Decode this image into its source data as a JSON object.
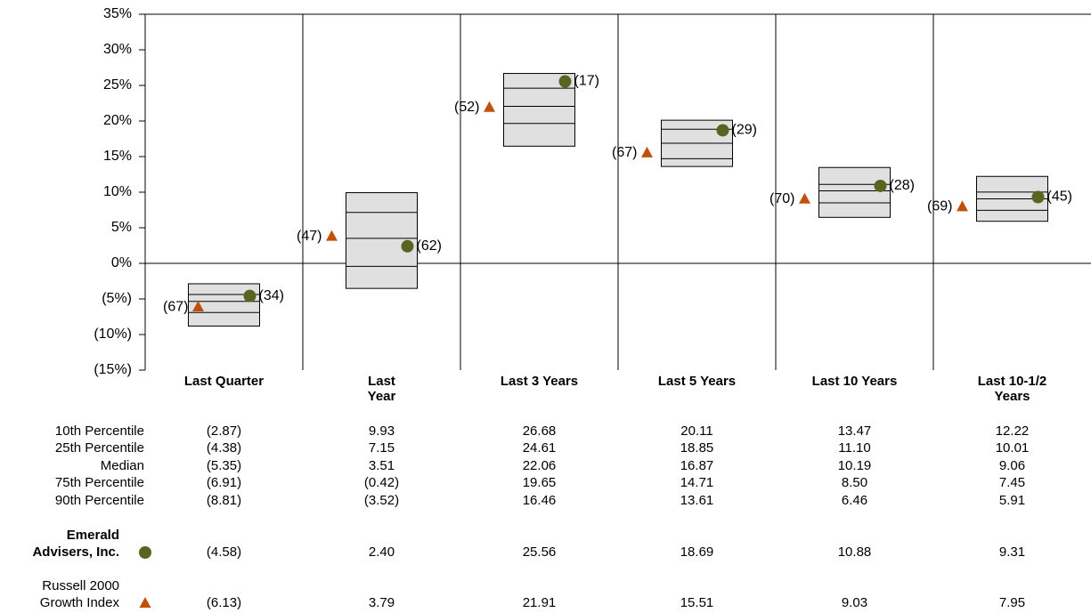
{
  "chart_data": {
    "type": "floating-box",
    "categories": [
      "Last Quarter",
      "Last\nYear",
      "Last 3 Years",
      "Last 5 Years",
      "Last 10 Years",
      "Last 10-1/2\nYears"
    ],
    "ylim": [
      -15,
      35
    ],
    "yticks": [
      {
        "value": 35,
        "label": "35%"
      },
      {
        "value": 30,
        "label": "30%"
      },
      {
        "value": 25,
        "label": "25%"
      },
      {
        "value": 20,
        "label": "20%"
      },
      {
        "value": 15,
        "label": "15%"
      },
      {
        "value": 10,
        "label": "10%"
      },
      {
        "value": 5,
        "label": "5%"
      },
      {
        "value": 0,
        "label": "0%"
      },
      {
        "value": -5,
        "label": "(5%)"
      },
      {
        "value": -10,
        "label": "(10%)"
      },
      {
        "value": -15,
        "label": "(15%)"
      }
    ],
    "percentiles": [
      {
        "name": "10th Percentile",
        "values": [
          -2.87,
          9.93,
          26.68,
          20.11,
          13.47,
          12.22
        ],
        "value_labels": [
          "(2.87)",
          "9.93",
          "26.68",
          "20.11",
          "13.47",
          "12.22"
        ]
      },
      {
        "name": "25th Percentile",
        "values": [
          -4.38,
          7.15,
          24.61,
          18.85,
          11.1,
          10.01
        ],
        "value_labels": [
          "(4.38)",
          "7.15",
          "24.61",
          "18.85",
          "11.10",
          "10.01"
        ]
      },
      {
        "name": "Median",
        "values": [
          -5.35,
          3.51,
          22.06,
          16.87,
          10.19,
          9.06
        ],
        "value_labels": [
          "(5.35)",
          "3.51",
          "22.06",
          "16.87",
          "10.19",
          "9.06"
        ]
      },
      {
        "name": "75th Percentile",
        "values": [
          -6.91,
          -0.42,
          19.65,
          14.71,
          8.5,
          7.45
        ],
        "value_labels": [
          "(6.91)",
          "(0.42)",
          "19.65",
          "14.71",
          "8.50",
          "7.45"
        ]
      },
      {
        "name": "90th Percentile",
        "values": [
          -8.81,
          -3.52,
          16.46,
          13.61,
          6.46,
          5.91
        ],
        "value_labels": [
          "(8.81)",
          "(3.52)",
          "16.46",
          "13.61",
          "6.46",
          "5.91"
        ]
      }
    ],
    "series": [
      {
        "name": "Emerald\nAdvisers, Inc.",
        "marker": "circle",
        "color": "#5b6320",
        "values": [
          -4.58,
          2.4,
          25.56,
          18.69,
          10.88,
          9.31
        ],
        "value_labels": [
          "(4.58)",
          "2.40",
          "25.56",
          "18.69",
          "10.88",
          "9.31"
        ],
        "ranks": [
          34,
          62,
          17,
          29,
          28,
          45
        ],
        "rank_labels": [
          "(34)",
          "(62)",
          "(17)",
          "(29)",
          "(28)",
          "(45)"
        ]
      },
      {
        "name": "Russell 2000\nGrowth Index",
        "marker": "triangle",
        "color": "#c0500a",
        "values": [
          -6.13,
          3.79,
          21.91,
          15.51,
          9.03,
          7.95
        ],
        "value_labels": [
          "(6.13)",
          "3.79",
          "21.91",
          "15.51",
          "9.03",
          "7.95"
        ],
        "ranks": [
          67,
          47,
          52,
          67,
          70,
          69
        ],
        "rank_labels": [
          "(67)",
          "(47)",
          "(52)",
          "(67)",
          "(70)",
          "(69)"
        ]
      }
    ]
  }
}
